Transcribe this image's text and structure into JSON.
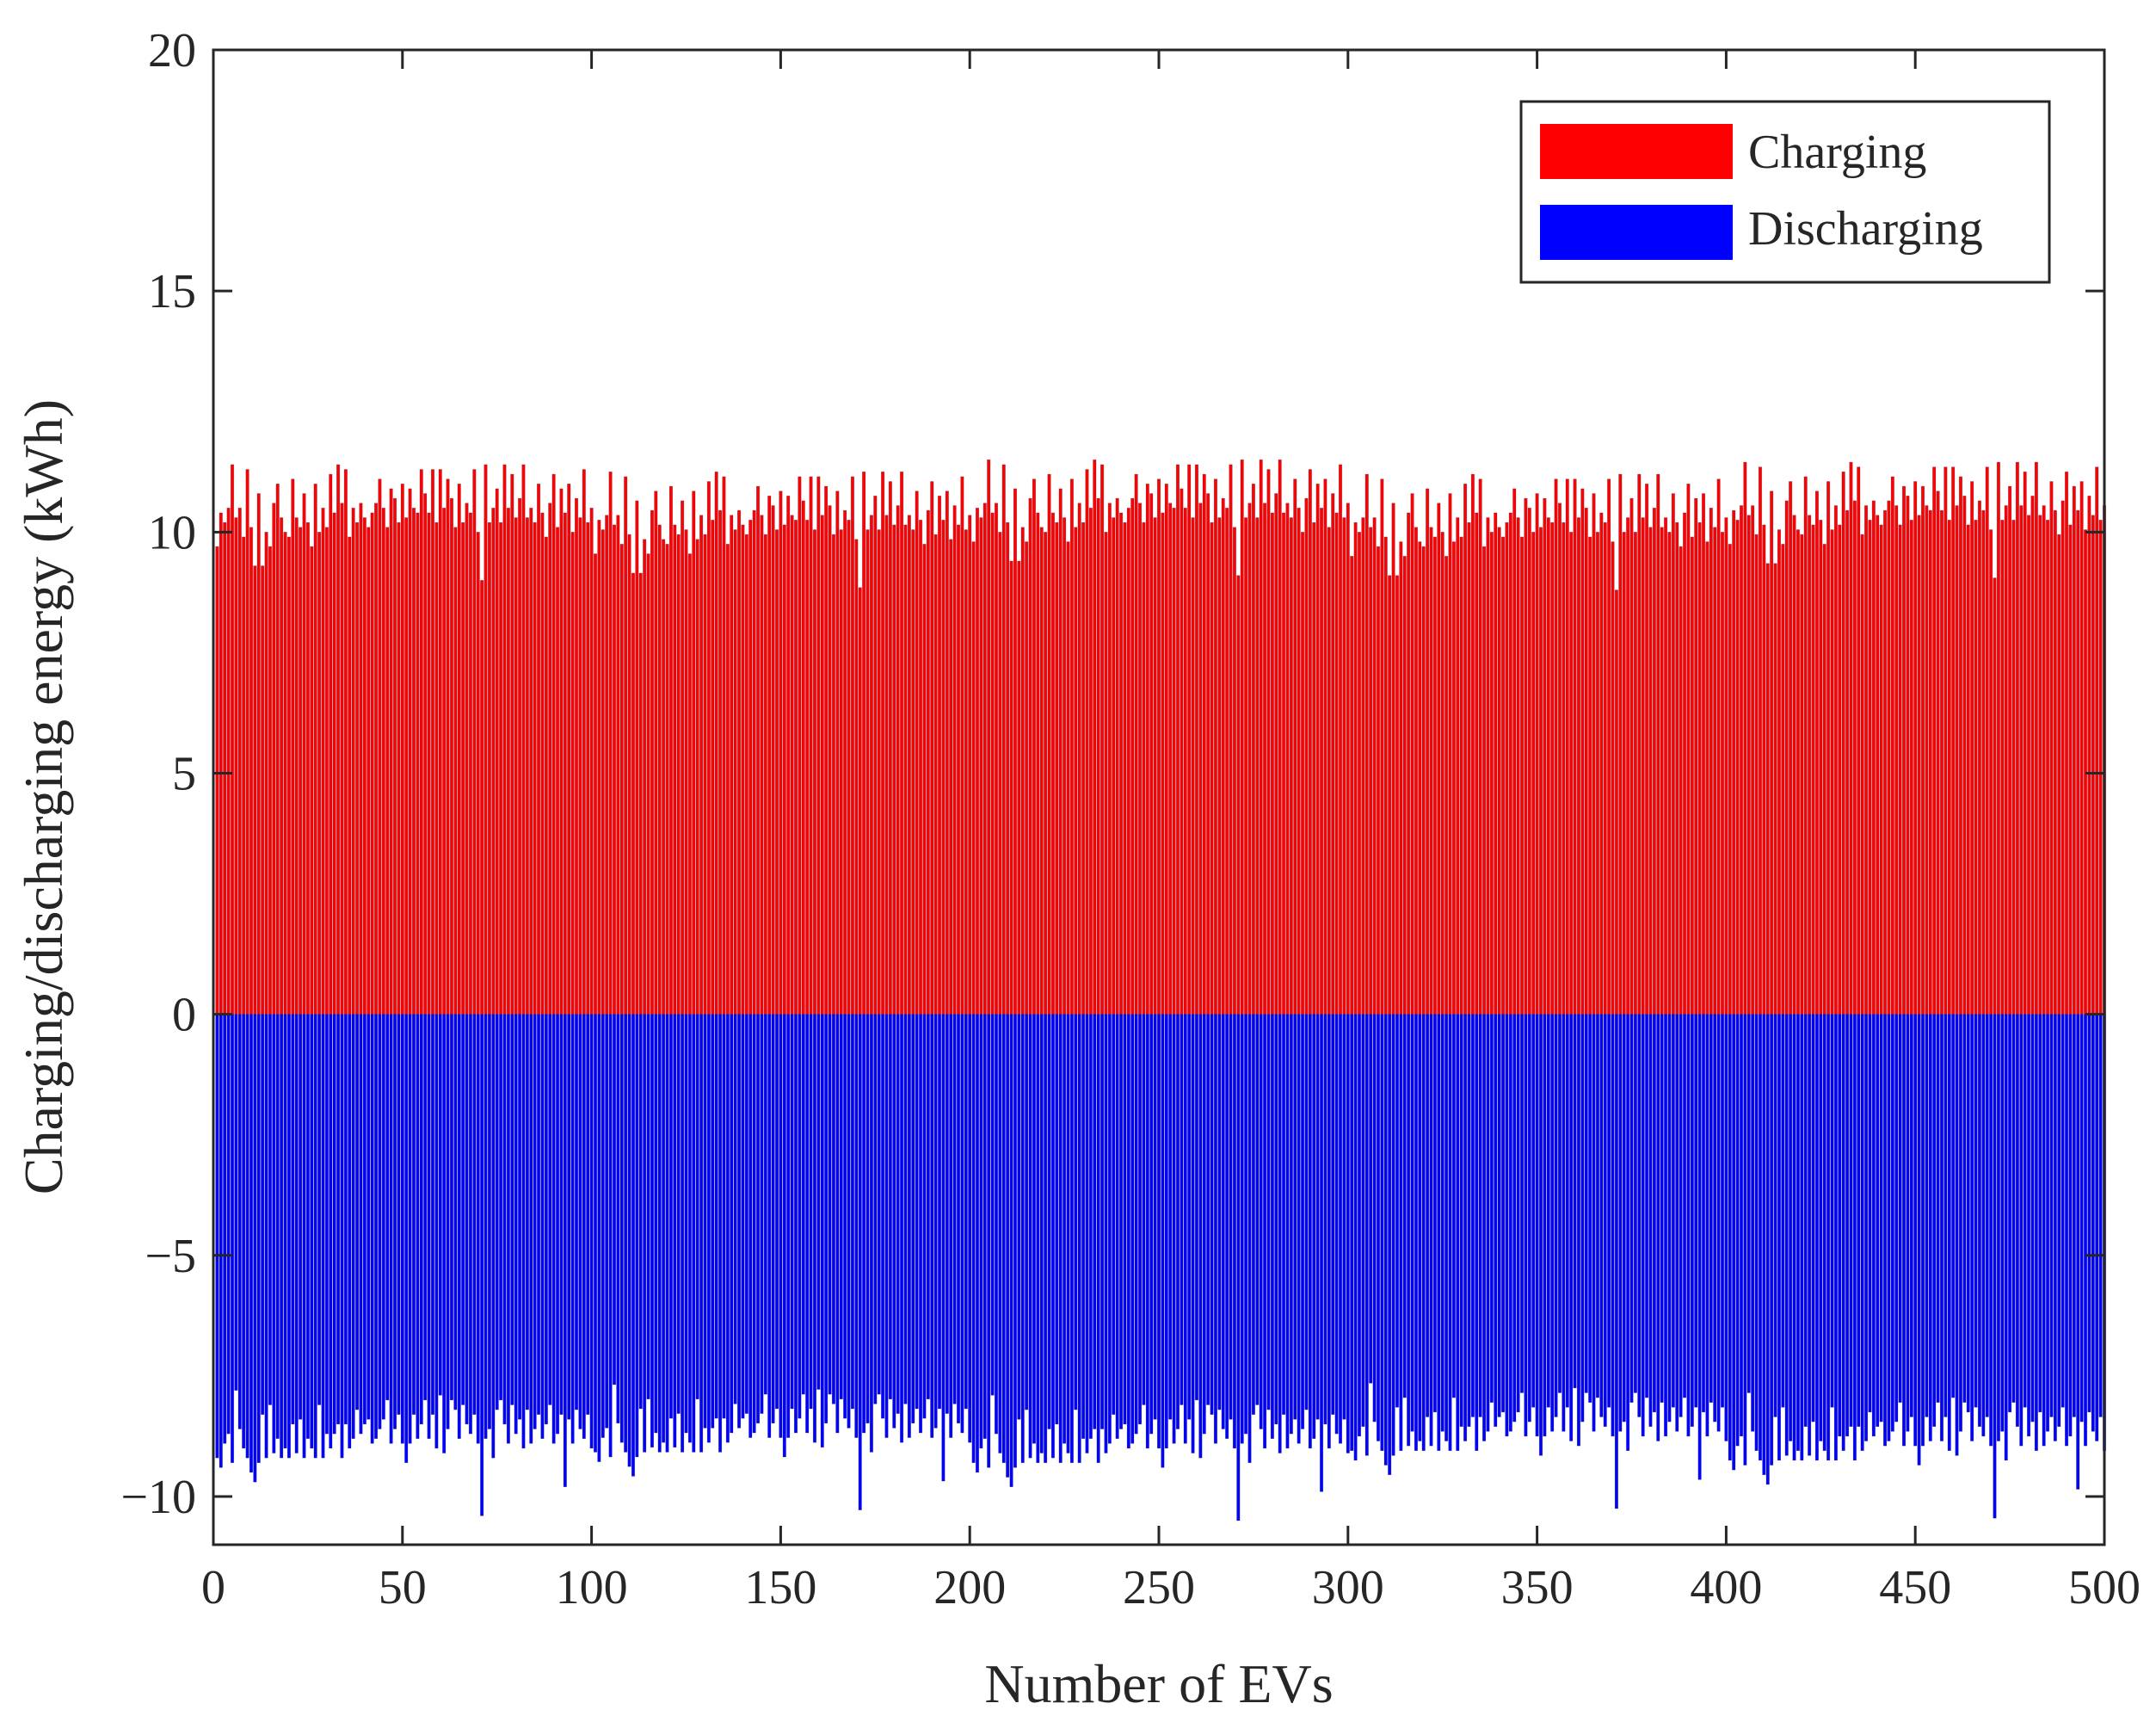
{
  "chart_data": {
    "type": "bar",
    "title": "",
    "xlabel": "Number of EVs",
    "ylabel": "Charging/discharging energy  (kWh)",
    "xlim": [
      0,
      500
    ],
    "ylim": [
      -11,
      20
    ],
    "xticks": [
      0,
      50,
      100,
      150,
      200,
      250,
      300,
      350,
      400,
      450,
      500
    ],
    "xtick_labels": [
      "0",
      "50",
      "100",
      "150",
      "200",
      "250",
      "300",
      "350",
      "400",
      "450",
      "500"
    ],
    "yticks": [
      -10,
      -5,
      0,
      5,
      10,
      15,
      20
    ],
    "ytick_labels": [
      "−10",
      "−5",
      "0",
      "5",
      "10",
      "15",
      "20"
    ],
    "grid": false,
    "legend_position": "top-right",
    "num_evs": 500,
    "series": [
      {
        "name": "Charging",
        "color": "#ff0000",
        "period": 100,
        "pattern_values": [
          9.7,
          10.4,
          10.2,
          10.5,
          11.4,
          10.3,
          10.5,
          9.9,
          11.3,
          10.1,
          9.3,
          10.8,
          9.3,
          10.0,
          9.7,
          10.6,
          11.0,
          10.3,
          10.0,
          9.9,
          11.1,
          10.3,
          10.1,
          10.8,
          10.2,
          9.7,
          11.0,
          10.0,
          10.5,
          10.1,
          11.2,
          10.4,
          11.4,
          10.6,
          11.3,
          9.9,
          10.5,
          10.2,
          10.6,
          10.3,
          10.1,
          10.4,
          10.6,
          11.1,
          10.5,
          10.1,
          10.9,
          10.7,
          10.2,
          11.0,
          10.3,
          10.9,
          10.5,
          10.4,
          11.3,
          10.8,
          10.4,
          11.3,
          10.2,
          11.3,
          10.5,
          11.1,
          10.7,
          10.1,
          11.0,
          10.2,
          10.6,
          10.4,
          11.3,
          10.0,
          9.0,
          11.4,
          10.2,
          10.5,
          10.9,
          10.2,
          11.4,
          10.5,
          11.2,
          10.3,
          10.7,
          11.4,
          10.3,
          10.5,
          10.2,
          11.0,
          10.4,
          9.9,
          10.6,
          11.2,
          10.1,
          10.9,
          10.4,
          11.0,
          10.0,
          10.7,
          10.3,
          11.3,
          10.2,
          10.5
        ],
        "offsets": [
          0,
          -0.15,
          0.1,
          -0.2,
          0.05
        ]
      },
      {
        "name": "Discharging",
        "color": "#0000ff",
        "period": 100,
        "pattern_values": [
          -9.2,
          -9.4,
          -8.9,
          -8.7,
          -9.3,
          -7.8,
          -8.6,
          -9.0,
          -9.2,
          -9.5,
          -9.7,
          -9.3,
          -8.3,
          -9.2,
          -8.1,
          -9.1,
          -8.8,
          -9.2,
          -9.0,
          -9.2,
          -8.5,
          -9.1,
          -8.4,
          -9.2,
          -8.8,
          -9.0,
          -9.2,
          -8.1,
          -9.2,
          -8.7,
          -9.0,
          -8.7,
          -8.5,
          -9.2,
          -8.5,
          -9.0,
          -8.8,
          -8.2,
          -8.7,
          -8.5,
          -8.4,
          -8.9,
          -8.8,
          -8.6,
          -8.4,
          -8.0,
          -8.9,
          -8.6,
          -8.3,
          -8.9,
          -9.3,
          -8.9,
          -8.3,
          -8.8,
          -8.5,
          -8.0,
          -8.8,
          -8.3,
          -9.0,
          -7.9,
          -9.1,
          -8.6,
          -8.0,
          -8.2,
          -8.8,
          -8.1,
          -8.5,
          -8.7,
          -8.3,
          -8.9,
          -10.4,
          -8.8,
          -8.6,
          -9.2,
          -8.2,
          -8.0,
          -8.5,
          -8.9,
          -8.1,
          -8.7,
          -8.4,
          -9.0,
          -8.2,
          -8.9,
          -8.6,
          -8.3,
          -8.8,
          -8.5,
          -8.1,
          -8.9,
          -8.7,
          -8.3,
          -9.8,
          -8.4,
          -8.9,
          -8.2,
          -8.6,
          -8.8,
          -8.3,
          -9.0
        ],
        "offsets": [
          0,
          0.12,
          -0.1,
          0.15,
          -0.05
        ]
      }
    ]
  }
}
